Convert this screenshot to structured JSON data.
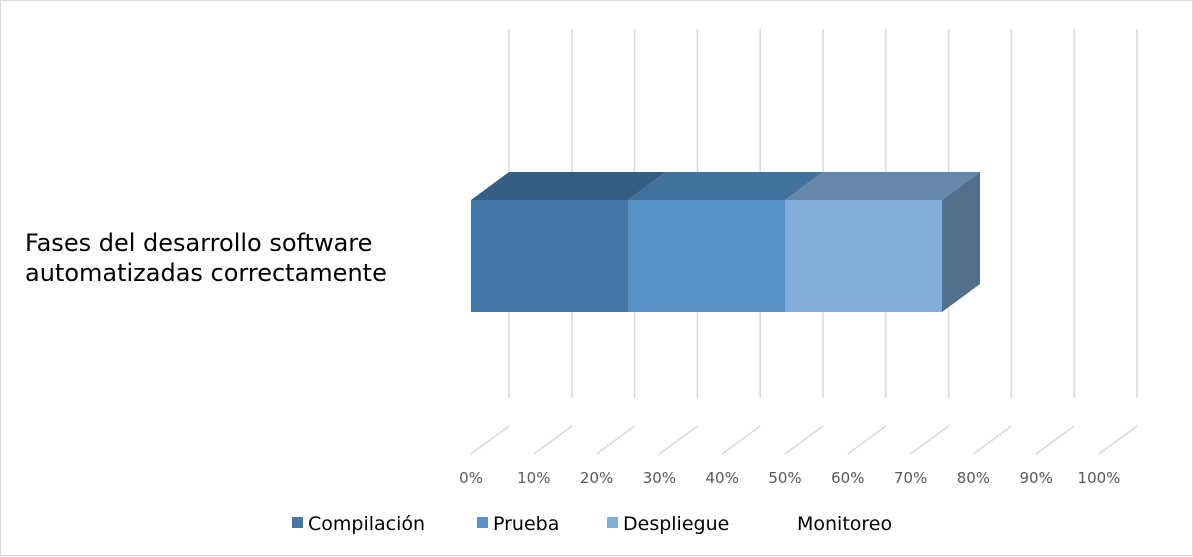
{
  "chart_data": {
    "type": "bar",
    "orientation": "horizontal",
    "stacked": "100%",
    "three_d": true,
    "categories": [
      "Fases del desarrollo software automatizadas correctamente"
    ],
    "category_label_lines": [
      "Fases del desarrollo software",
      "automatizadas correctamente"
    ],
    "series": [
      {
        "name": "Compilación",
        "values": [
          25
        ],
        "color": "#4577A8"
      },
      {
        "name": "Prueba",
        "values": [
          25
        ],
        "color": "#5592C7"
      },
      {
        "name": "Despliegue",
        "values": [
          25
        ],
        "color": "#82AEDC"
      },
      {
        "name": "Monitoreo",
        "values": [
          0
        ],
        "color": "#536F8E"
      }
    ],
    "xlim": [
      0,
      100
    ],
    "ticks": [
      "0%",
      "10%",
      "20%",
      "30%",
      "40%",
      "50%",
      "60%",
      "70%",
      "80%",
      "90%",
      "100%"
    ],
    "grid": true,
    "legend_position": "bottom",
    "title": "",
    "xlabel": "",
    "ylabel": ""
  }
}
